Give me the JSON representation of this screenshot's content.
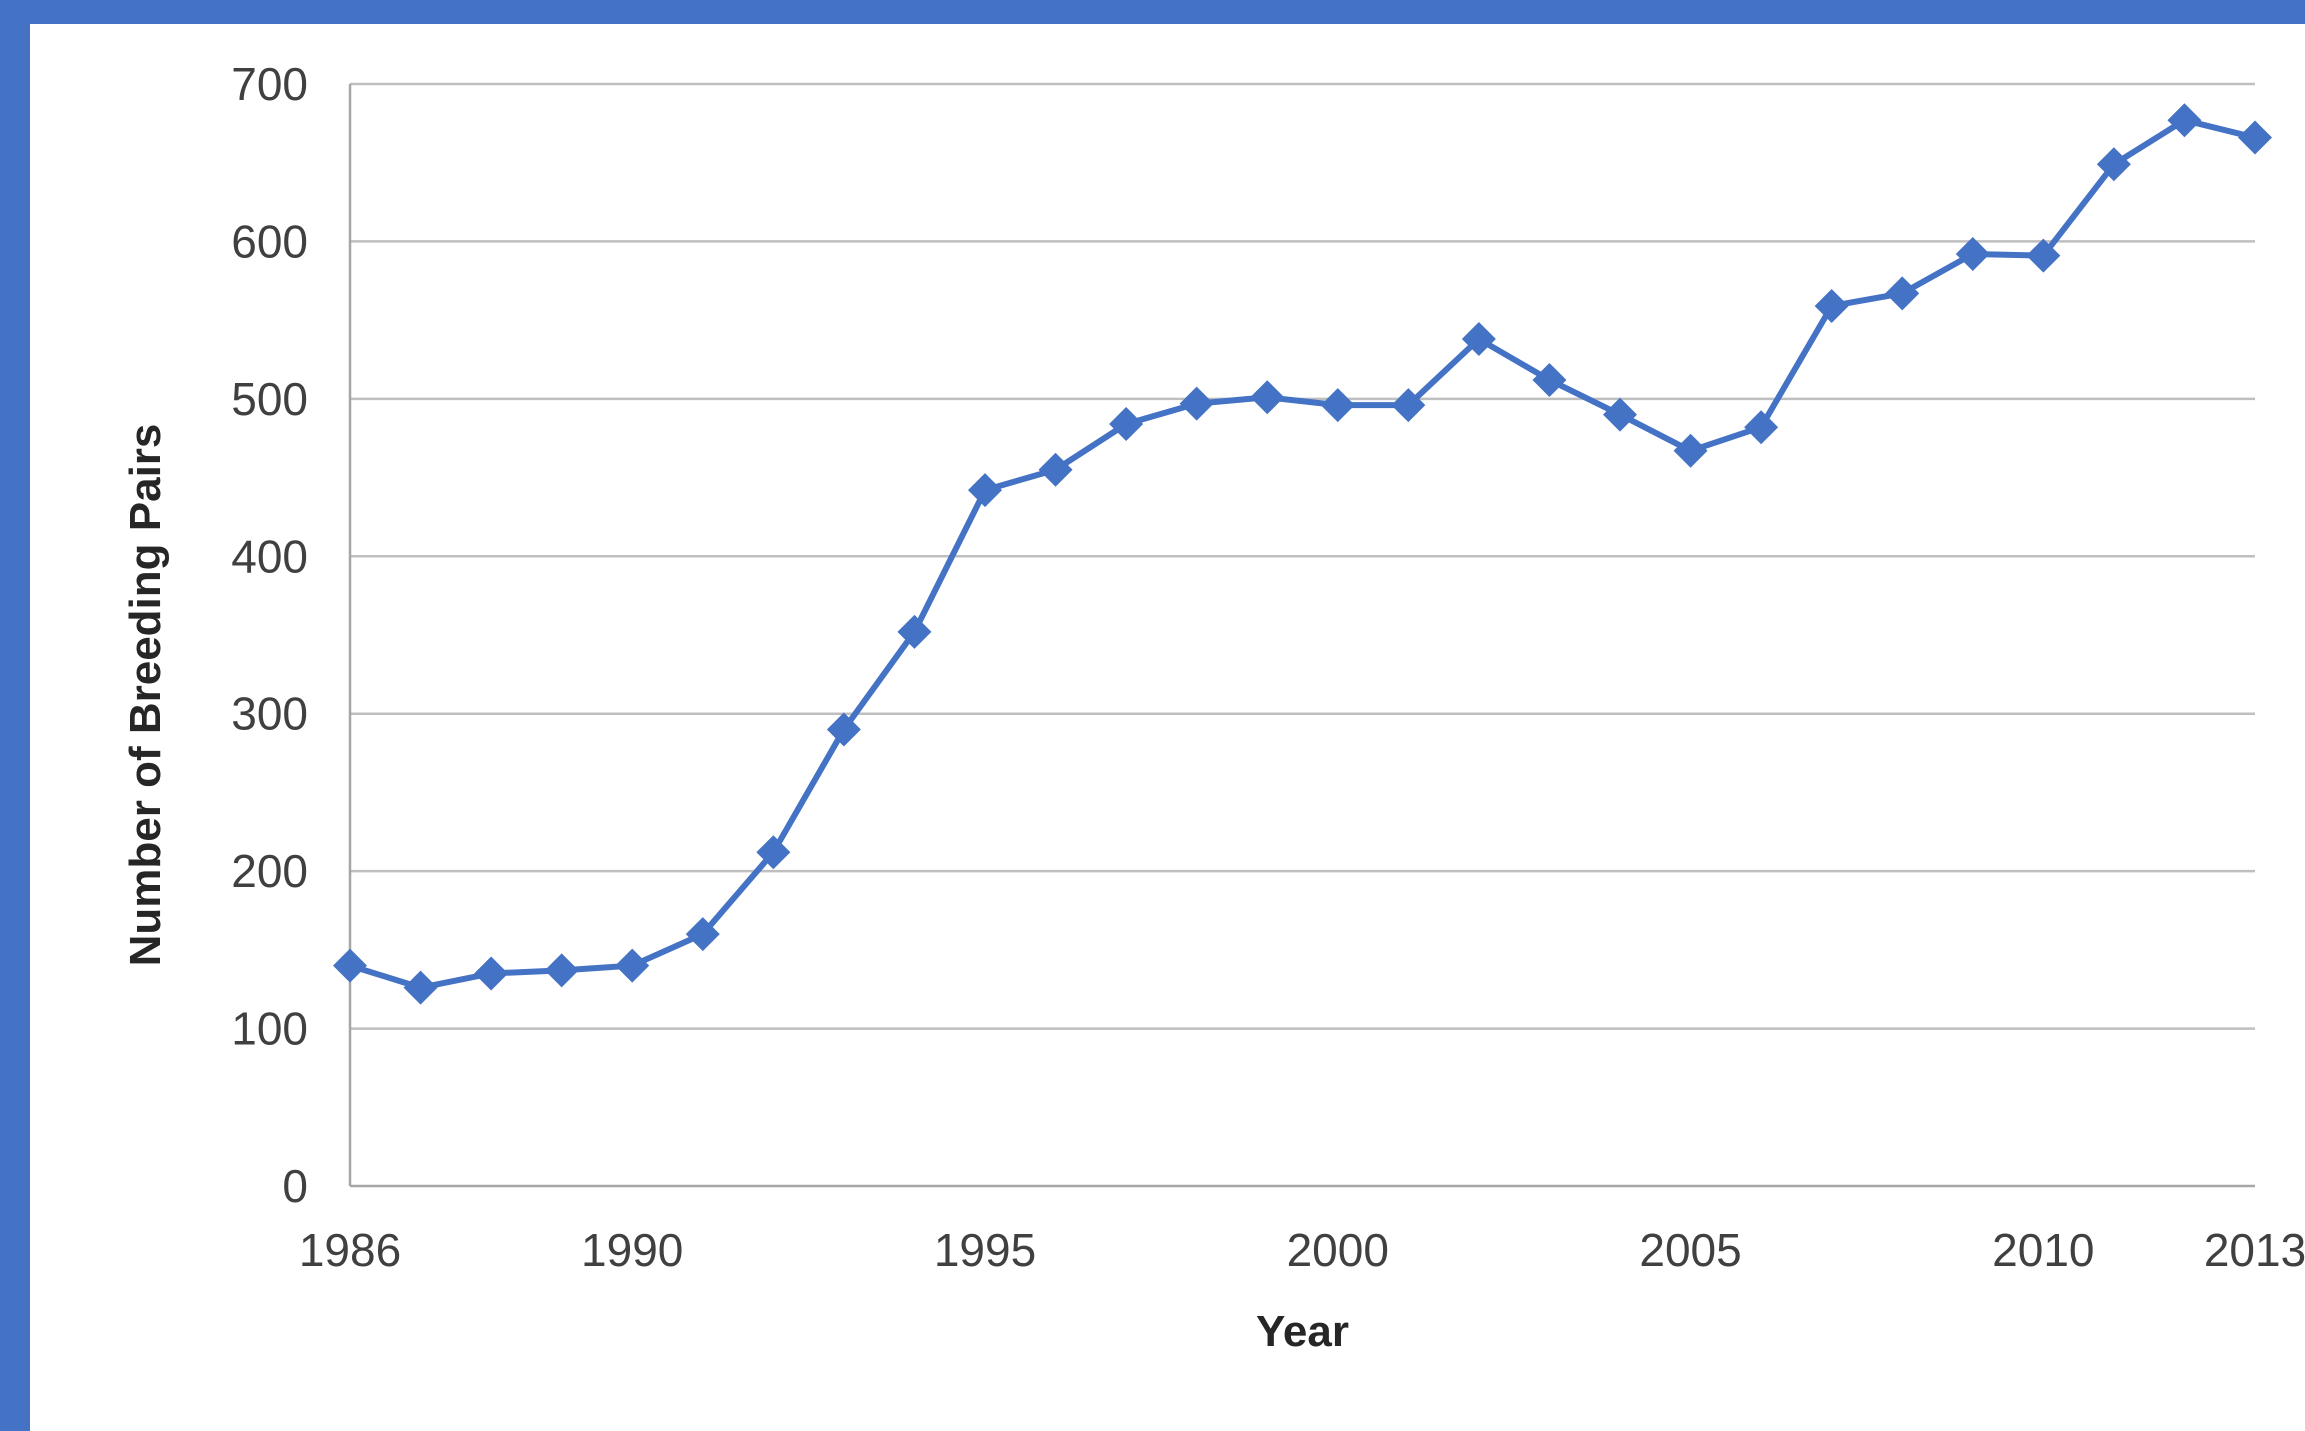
{
  "chart_data": {
    "type": "line",
    "title": "",
    "xlabel": "Year",
    "ylabel": "Number of Breeding Pairs",
    "xlim": [
      1986,
      2013
    ],
    "ylim": [
      0,
      700
    ],
    "x_ticks": [
      1986,
      1990,
      1995,
      2000,
      2005,
      2010,
      2013
    ],
    "y_ticks": [
      0,
      100,
      200,
      300,
      400,
      500,
      600,
      700
    ],
    "grid": true,
    "legend": "none",
    "marker": "diamond",
    "color": "#4472c4",
    "x": [
      1986,
      1987,
      1988,
      1989,
      1990,
      1991,
      1992,
      1993,
      1994,
      1995,
      1996,
      1997,
      1998,
      1999,
      2000,
      2001,
      2002,
      2003,
      2004,
      2005,
      2006,
      2007,
      2008,
      2009,
      2010,
      2011,
      2012,
      2013
    ],
    "series": [
      {
        "values": [
          140,
          126,
          135,
          137,
          140,
          160,
          212,
          290,
          352,
          442,
          455,
          484,
          497,
          501,
          496,
          496,
          538,
          512,
          490,
          467,
          482,
          559,
          567,
          592,
          591,
          649,
          677,
          666
        ]
      }
    ]
  }
}
